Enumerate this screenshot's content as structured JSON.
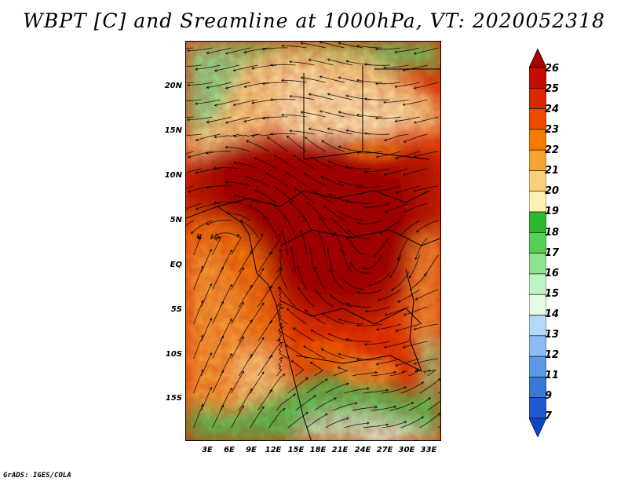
{
  "title": "WBPT [C] and Sreamline at 1000hPa, VT: 2020052318",
  "credit": "GrADS: IGES/COLA",
  "latitude_labels": [
    "20N",
    "15N",
    "10N",
    "5N",
    "EQ",
    "5S",
    "10S",
    "15S"
  ],
  "longitude_labels": [
    "3E",
    "6E",
    "9E",
    "12E",
    "15E",
    "18E",
    "21E",
    "24E",
    "27E",
    "30E",
    "33E"
  ],
  "colorbar": {
    "labels": [
      "26",
      "25",
      "24",
      "23",
      "22",
      "21",
      "20",
      "19",
      "18",
      "17",
      "16",
      "15",
      "14",
      "13",
      "12",
      "11",
      "9",
      "7"
    ],
    "colors": [
      "#a50000",
      "#c40e00",
      "#dc2800",
      "#ec4a00",
      "#f47a00",
      "#f9a236",
      "#fbd07c",
      "#fff0b4",
      "#2eb82e",
      "#56d056",
      "#8fe38f",
      "#bff3bf",
      "#e4fae4",
      "#b4d8fa",
      "#8cbcf2",
      "#5c9ae6",
      "#3878da",
      "#1e5ad0",
      "#0a46c6"
    ]
  }
}
